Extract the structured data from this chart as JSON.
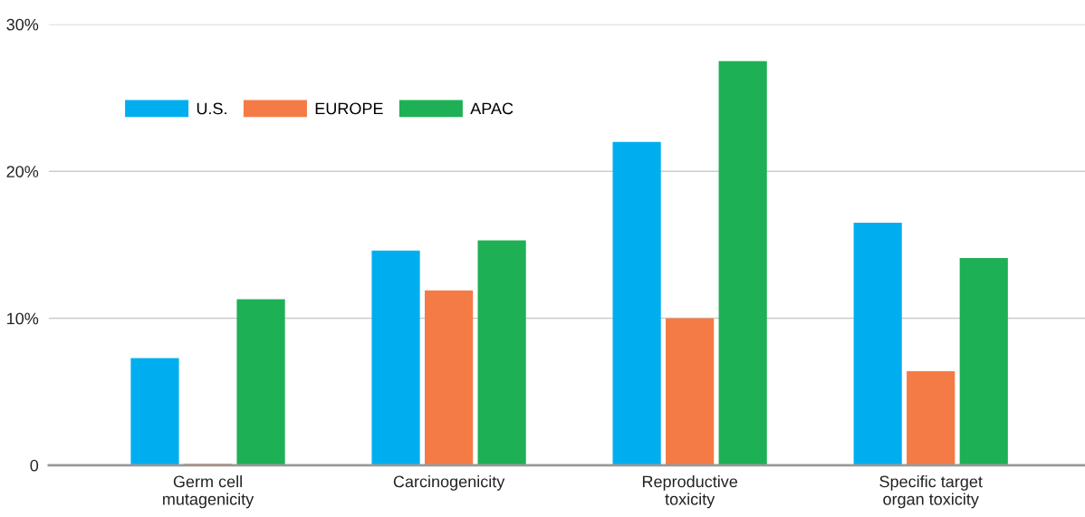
{
  "chart_data": {
    "type": "bar",
    "categories": [
      "Germ cell\nmutagenicity",
      "Carcinogenicity",
      "Reproductive\ntoxicity",
      "Specific target\norgan toxicity"
    ],
    "series": [
      {
        "name": "U.S.",
        "color": "#00aeef",
        "values": [
          7.3,
          14.6,
          22.0,
          16.5
        ]
      },
      {
        "name": "EUROPE",
        "color": "#f47b45",
        "values": [
          0.1,
          11.9,
          10.0,
          6.4
        ]
      },
      {
        "name": "APAC",
        "color": "#1eb055",
        "values": [
          11.3,
          15.3,
          27.5,
          14.1
        ]
      }
    ],
    "ylim": [
      0,
      30
    ],
    "yticks": [
      0,
      {
        "value": 10,
        "label": "10%"
      },
      {
        "value": 20,
        "label": "20%"
      },
      {
        "value": 30,
        "label": "30%"
      }
    ],
    "grid": "y",
    "legend": "top left"
  }
}
